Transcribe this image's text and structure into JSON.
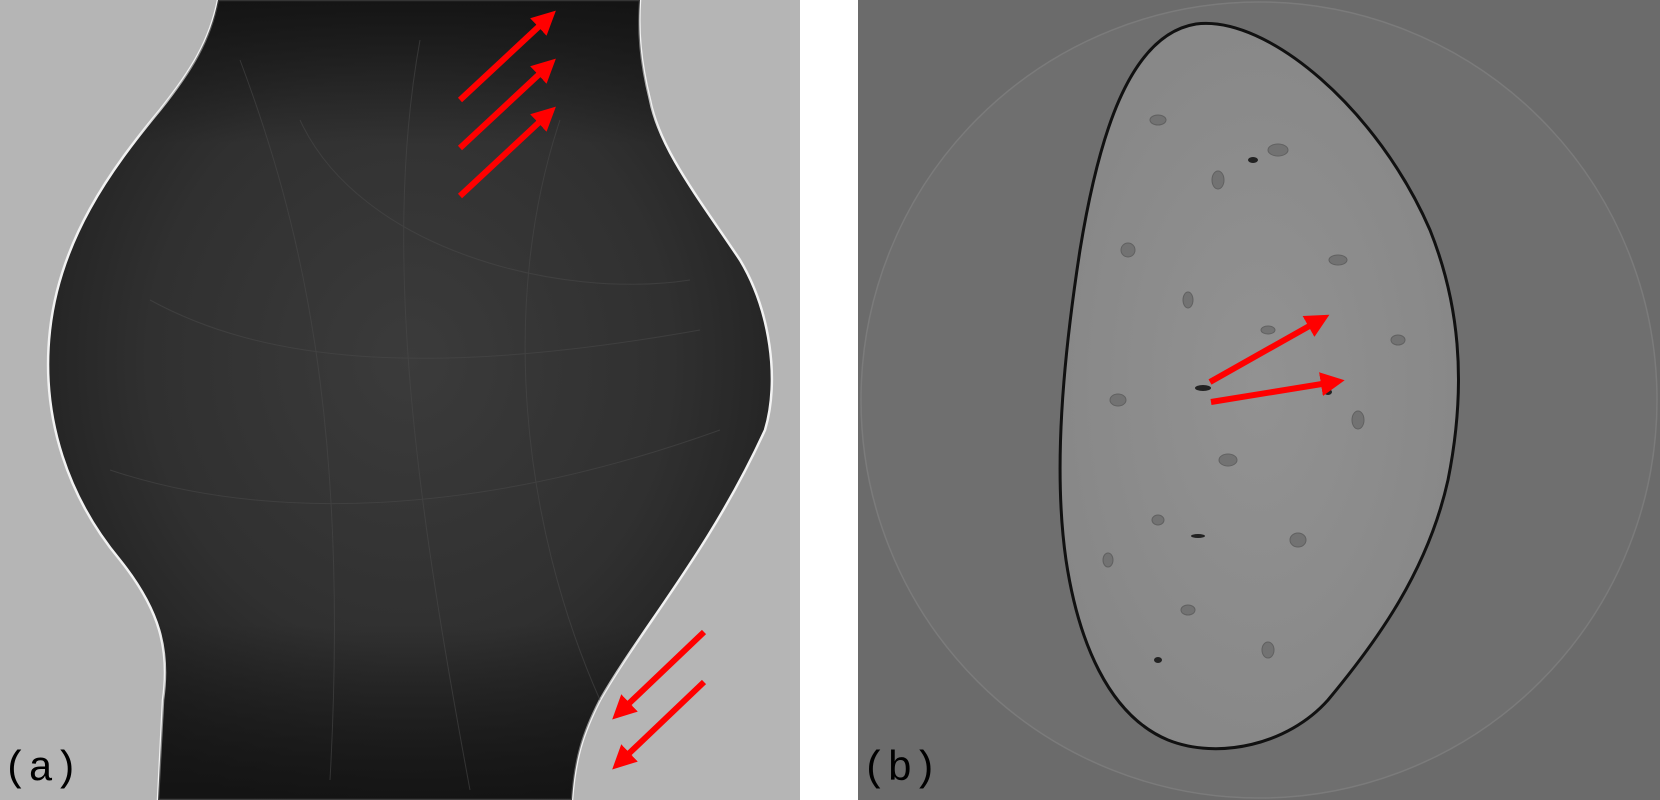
{
  "figure": {
    "panel_a": {
      "label": "(a)"
    },
    "panel_b": {
      "label": "(b)"
    }
  },
  "colors": {
    "arrow": "#ff0000",
    "background_a": "#b5b5b5",
    "specimen_a": "#2a2a2a",
    "background_b": "#6b6b6b",
    "field_of_view_b": "#6f6f6f",
    "specimen_b": "#8c8c8c",
    "label_text": "#000000"
  }
}
